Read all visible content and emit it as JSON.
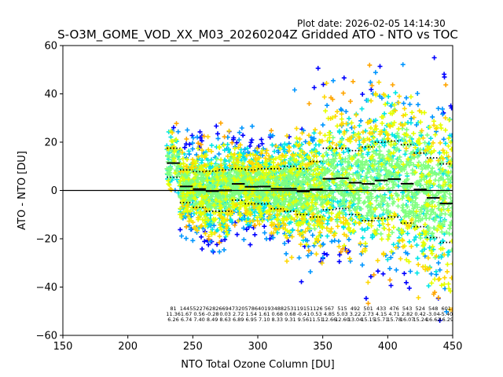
{
  "header": {
    "plot_date": "Plot date: 2026-02-05 14:14:30",
    "title": "S-O3M_GOME_VOD_XX_M03_20260204Z Gridded ATO - NTO vs TOC"
  },
  "chart_data": {
    "type": "scatter",
    "title": "S-O3M_GOME_VOD_XX_M03_20260204Z Gridded ATO - NTO vs TOC",
    "xlabel": "NTO Total Ozone Column [DU]",
    "ylabel": "ATO - NTO [DU]",
    "xlim": [
      150,
      450
    ],
    "ylim": [
      -60,
      60
    ],
    "xticks": [
      150,
      200,
      250,
      300,
      350,
      400,
      450
    ],
    "yticks": [
      -60,
      -40,
      -20,
      0,
      20,
      40,
      60
    ],
    "zero_line": 0,
    "point_marker": "plus",
    "density_colors": [
      "#0000ff",
      "#0096ff",
      "#00e6e6",
      "#80ff80",
      "#e6ff00",
      "#ffd700",
      "#ffa500"
    ],
    "bins": [
      {
        "center": 235,
        "n": "81",
        "mean": "11.36",
        "std": "6.26",
        "p_hi": 17.5,
        "p_lo": 5.5
      },
      {
        "center": 245,
        "n": "1445",
        "mean": "1.67",
        "std": "6.74",
        "p_hi": 8.5,
        "p_lo": -5.0
      },
      {
        "center": 255,
        "n": "5227",
        "mean": "0.56",
        "std": "7.40",
        "p_hi": 7.8,
        "p_lo": -7.0
      },
      {
        "center": 265,
        "n": "6282",
        "mean": "-0.28",
        "std": "8.49",
        "p_hi": 8.0,
        "p_lo": -8.6
      },
      {
        "center": 275,
        "n": "6694",
        "mean": "0.03",
        "std": "8.63",
        "p_hi": 8.5,
        "p_lo": -8.6
      },
      {
        "center": 285,
        "n": "7320",
        "mean": "2.72",
        "std": "6.89",
        "p_hi": 9.0,
        "p_lo": -4.0
      },
      {
        "center": 295,
        "n": "5786",
        "mean": "1.54",
        "std": "6.95",
        "p_hi": 8.5,
        "p_lo": -5.5
      },
      {
        "center": 305,
        "n": "4019",
        "mean": "1.61",
        "std": "7.10",
        "p_hi": 9.0,
        "p_lo": -5.5
      },
      {
        "center": 315,
        "n": "3488",
        "mean": "0.68",
        "std": "8.33",
        "p_hi": 9.0,
        "p_lo": -7.6
      },
      {
        "center": 325,
        "n": "2531",
        "mean": "0.68",
        "std": "9.31",
        "p_hi": 10.0,
        "p_lo": -8.6
      },
      {
        "center": 335,
        "n": "1915",
        "mean": "-0.41",
        "std": "9.56",
        "p_hi": 9.0,
        "p_lo": -10.0
      },
      {
        "center": 345,
        "n": "1126",
        "mean": "0.53",
        "std": "11.51",
        "p_hi": 12.0,
        "p_lo": -11.0
      },
      {
        "center": 355,
        "n": "567",
        "mean": "4.85",
        "std": "12.66",
        "p_hi": 17.5,
        "p_lo": -8.0
      },
      {
        "center": 365,
        "n": "515",
        "mean": "5.03",
        "std": "12.60",
        "p_hi": 17.5,
        "p_lo": -7.5
      },
      {
        "center": 375,
        "n": "492",
        "mean": "3.22",
        "std": "13.04",
        "p_hi": 16.5,
        "p_lo": -10.0
      },
      {
        "center": 385,
        "n": "501",
        "mean": "2.73",
        "std": "15.15",
        "p_hi": 18.0,
        "p_lo": -12.5
      },
      {
        "center": 395,
        "n": "433",
        "mean": "4.15",
        "std": "15.71",
        "p_hi": 20.0,
        "p_lo": -11.5
      },
      {
        "center": 405,
        "n": "476",
        "mean": "4.71",
        "std": "15.78",
        "p_hi": 20.5,
        "p_lo": -11.0
      },
      {
        "center": 415,
        "n": "543",
        "mean": "2.82",
        "std": "16.07",
        "p_hi": 19.0,
        "p_lo": -13.5
      },
      {
        "center": 425,
        "n": "524",
        "mean": "0.42",
        "std": "15.24",
        "p_hi": 15.5,
        "p_lo": -15.0
      },
      {
        "center": 435,
        "n": "548",
        "mean": "-3.04",
        "std": "16.62",
        "p_hi": 13.5,
        "p_lo": -19.5
      },
      {
        "center": 445,
        "n": "601",
        "mean": "-5.40",
        "std": "16.29",
        "p_hi": 11.0,
        "p_lo": -21.5
      }
    ]
  }
}
